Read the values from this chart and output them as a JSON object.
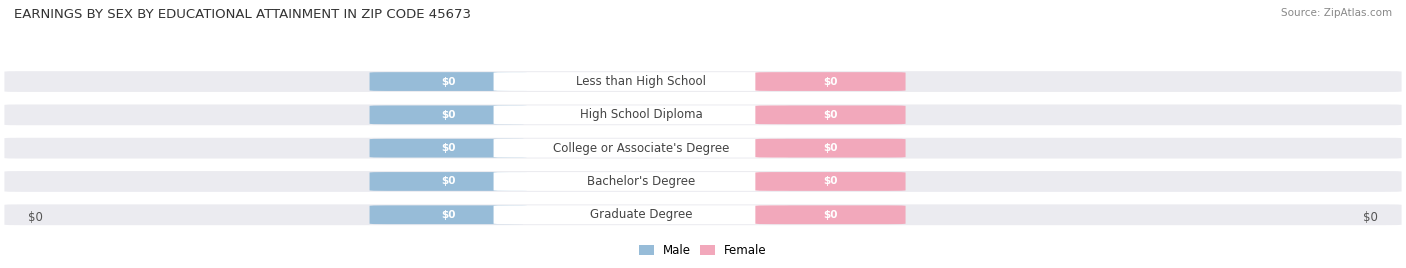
{
  "title": "EARNINGS BY SEX BY EDUCATIONAL ATTAINMENT IN ZIP CODE 45673",
  "source": "Source: ZipAtlas.com",
  "categories": [
    "Less than High School",
    "High School Diploma",
    "College or Associate's Degree",
    "Bachelor's Degree",
    "Graduate Degree"
  ],
  "male_color": "#97bcd8",
  "female_color": "#f2a8bb",
  "row_bg_color": "#ebebf0",
  "label_bg_color": "#ffffff",
  "xlabel_left": "$0",
  "xlabel_right": "$0",
  "legend_male": "Male",
  "legend_female": "Female",
  "title_fontsize": 9.5,
  "source_fontsize": 7.5,
  "bar_label_fontsize": 7.5,
  "cat_label_fontsize": 8.5,
  "tick_fontsize": 8.5,
  "legend_fontsize": 8.5,
  "background_color": "#ffffff"
}
